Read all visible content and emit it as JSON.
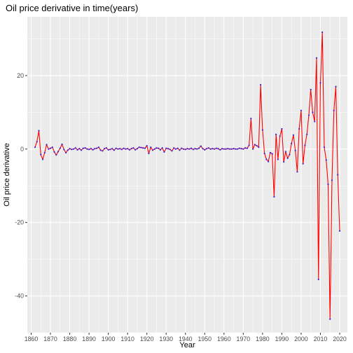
{
  "chart_data": {
    "type": "line",
    "title": "Oil price derivative in time(years)",
    "xlabel": "Year",
    "ylabel": "Oil price derivative",
    "xlim": [
      1858,
      2024
    ],
    "ylim": [
      -50,
      36
    ],
    "x_ticks": [
      1860,
      1870,
      1880,
      1890,
      1900,
      1910,
      1920,
      1930,
      1940,
      1950,
      1960,
      1970,
      1980,
      1990,
      2000,
      2010,
      2020
    ],
    "y_ticks": [
      -40,
      -20,
      0,
      20
    ],
    "y_tick_labels": [
      "-40",
      "-20",
      "0",
      "20"
    ],
    "grid": true,
    "colors": {
      "panel": "#ebebeb",
      "grid_major": "#ffffff",
      "line": "#ff0000",
      "points": "#3b23d6"
    },
    "series": [
      {
        "x": [
          1862,
          1863,
          1864,
          1865,
          1866,
          1867,
          1868,
          1869,
          1870,
          1871,
          1872,
          1873,
          1874,
          1875,
          1876,
          1877,
          1878,
          1879,
          1880,
          1881,
          1882,
          1883,
          1884,
          1885,
          1886,
          1887,
          1888,
          1889,
          1890,
          1891,
          1892,
          1893,
          1894,
          1895,
          1896,
          1897,
          1898,
          1899,
          1900,
          1901,
          1902,
          1903,
          1904,
          1905,
          1906,
          1907,
          1908,
          1909,
          1910,
          1911,
          1912,
          1913,
          1914,
          1915,
          1916,
          1917,
          1918,
          1919,
          1920,
          1921,
          1922,
          1923,
          1924,
          1925,
          1926,
          1927,
          1928,
          1929,
          1930,
          1931,
          1932,
          1933,
          1934,
          1935,
          1936,
          1937,
          1938,
          1939,
          1940,
          1941,
          1942,
          1943,
          1944,
          1945,
          1946,
          1947,
          1948,
          1949,
          1950,
          1951,
          1952,
          1953,
          1954,
          1955,
          1956,
          1957,
          1958,
          1959,
          1960,
          1961,
          1962,
          1963,
          1964,
          1965,
          1966,
          1967,
          1968,
          1969,
          1970,
          1971,
          1972,
          1973,
          1974,
          1975,
          1976,
          1977,
          1978,
          1979,
          1980,
          1981,
          1982,
          1983,
          1984,
          1985,
          1986,
          1987,
          1988,
          1989,
          1990,
          1991,
          1992,
          1993,
          1994,
          1995,
          1996,
          1997,
          1998,
          1999,
          2000,
          2001,
          2002,
          2003,
          2004,
          2005,
          2006,
          2007,
          2008,
          2009,
          2010,
          2011,
          2012,
          2013,
          2014,
          2015,
          2016,
          2017,
          2018,
          2019,
          2020
        ],
        "values": [
          0.5,
          2.0,
          5.0,
          -1.5,
          -2.8,
          -1.0,
          1.2,
          0.0,
          0.2,
          0.5,
          -0.8,
          -1.6,
          -0.7,
          0.2,
          1.3,
          -0.1,
          -1.0,
          -0.3,
          0.1,
          -0.1,
          0.0,
          0.3,
          -0.2,
          0.1,
          -0.3,
          0.2,
          0.3,
          0.0,
          -0.1,
          0.1,
          -0.2,
          0.1,
          0.2,
          0.5,
          -0.3,
          -0.5,
          0.1,
          0.3,
          -0.2,
          -0.1,
          0.1,
          -0.3,
          0.2,
          0.0,
          0.1,
          -0.1,
          0.2,
          0.0,
          0.1,
          -0.2,
          0.1,
          0.3,
          -0.2,
          0.1,
          0.5,
          0.4,
          0.3,
          0.2,
          0.9,
          -1.2,
          0.5,
          -0.3,
          0.0,
          0.3,
          0.2,
          -0.2,
          0.3,
          -0.8,
          0.2,
          0.1,
          -0.1,
          -0.5,
          0.3,
          0.0,
          0.2,
          -0.3,
          0.2,
          0.0,
          -0.1,
          0.1,
          0.0,
          0.2,
          -0.1,
          0.1,
          0.0,
          0.2,
          0.8,
          0.1,
          -0.2,
          0.1,
          0.3,
          0.0,
          0.1,
          0.0,
          0.2,
          0.1,
          -0.2,
          0.1,
          0.0,
          0.0,
          0.1,
          0.0,
          0.0,
          0.1,
          0.0,
          0.0,
          0.2,
          0.1,
          0.0,
          0.3,
          0.2,
          1.0,
          8.3,
          0.0,
          1.2,
          0.9,
          0.5,
          17.5,
          5.2,
          -1.2,
          -2.8,
          -3.4,
          -1.0,
          -1.3,
          -13.0,
          4.0,
          -2.8,
          3.5,
          5.5,
          -3.5,
          -0.7,
          -2.5,
          -1.5,
          1.5,
          3.8,
          -0.4,
          -6.2,
          5.5,
          10.5,
          -4.0,
          1.0,
          4.0,
          9.2,
          16.2,
          10.0,
          7.5,
          24.8,
          -35.5,
          18.0,
          31.8,
          0.5,
          -3.0,
          -9.6,
          -46.3,
          -8.5,
          10.5,
          17.0,
          -7.0,
          -22.3
        ]
      }
    ]
  }
}
